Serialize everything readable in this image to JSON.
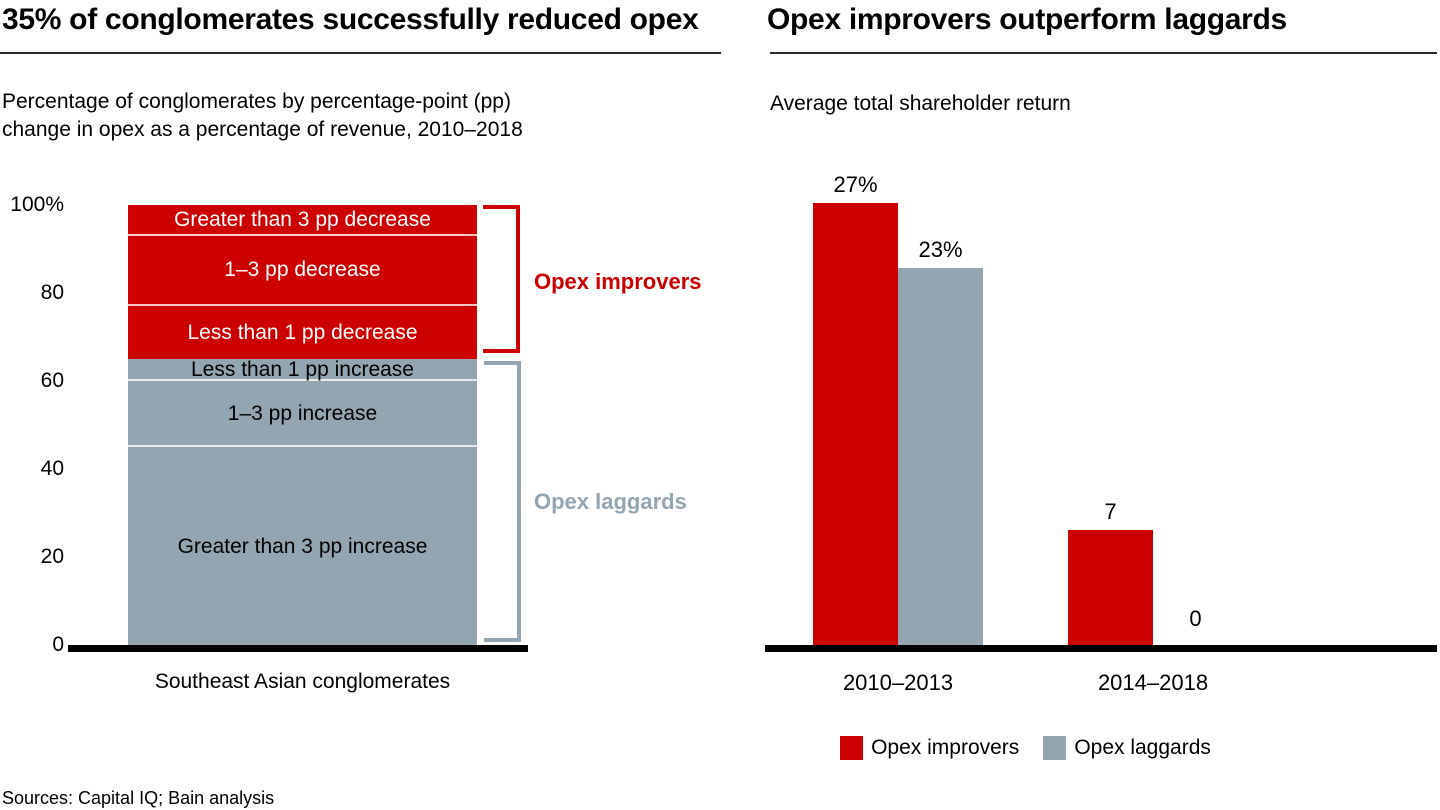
{
  "page": {
    "background": "#ffffff",
    "sources": "Sources: Capital IQ; Bain analysis"
  },
  "colors": {
    "improvers_red": "#cc0000",
    "laggards_gray": "#94a5b2",
    "baseline_black": "#000000",
    "rule_gray": "#2b2b2b"
  },
  "left_panel": {
    "title": "35% of conglomerates successfully reduced opex",
    "subtitle_line1": "Percentage of conglomerates by percentage-point (pp)",
    "subtitle_line2": "change in opex as a percentage of revenue, 2010–2018"
  },
  "right_panel": {
    "title": "Opex improvers outperform laggards",
    "subtitle": "Average total shareholder return"
  },
  "chart_data": [
    {
      "type": "bar",
      "subtype": "stacked-100-percent",
      "title": "35% of conglomerates successfully reduced opex",
      "subtitle": "Percentage of conglomerates by percentage-point (pp) change in opex as a percentage of revenue, 2010–2018",
      "categories": [
        "Southeast Asian conglomerates"
      ],
      "ylim": [
        0,
        100
      ],
      "grid": false,
      "y_ticks": [
        {
          "value": 100,
          "label": "100%"
        },
        {
          "value": 80,
          "label": "80"
        },
        {
          "value": 60,
          "label": "60"
        },
        {
          "value": 40,
          "label": "40"
        },
        {
          "value": 20,
          "label": "20"
        },
        {
          "value": 0,
          "label": "0"
        }
      ],
      "segments": [
        {
          "label": "Greater than 3 pp decrease",
          "value": 7,
          "group": "Opex improvers"
        },
        {
          "label": "1–3 pp decrease",
          "value": 16,
          "group": "Opex improvers"
        },
        {
          "label": "Less than 1 pp decrease",
          "value": 12,
          "group": "Opex improvers"
        },
        {
          "label": "Less than 1 pp increase",
          "value": 5,
          "group": "Opex laggards"
        },
        {
          "label": "1–3 pp increase",
          "value": 15,
          "group": "Opex laggards"
        },
        {
          "label": "Greater than 3 pp increase",
          "value": 45,
          "group": "Opex laggards"
        }
      ],
      "groups": [
        {
          "name": "Opex improvers",
          "total": 35,
          "color": "#cc0000"
        },
        {
          "name": "Opex laggards",
          "total": 65,
          "color": "#94a5b2"
        }
      ]
    },
    {
      "type": "bar",
      "title": "Opex improvers outperform laggards",
      "subtitle": "Average total shareholder return",
      "categories": [
        "2010–2013",
        "2014–2018"
      ],
      "series": [
        {
          "name": "Opex improvers",
          "color": "#cc0000",
          "values": [
            27,
            7
          ],
          "labels": [
            "27%",
            "7"
          ]
        },
        {
          "name": "Opex laggards",
          "color": "#94a5b2",
          "values": [
            23,
            0
          ],
          "labels": [
            "23%",
            "0"
          ]
        }
      ],
      "ylim": [
        0,
        27
      ],
      "grid": false,
      "legend_position": "bottom"
    }
  ]
}
